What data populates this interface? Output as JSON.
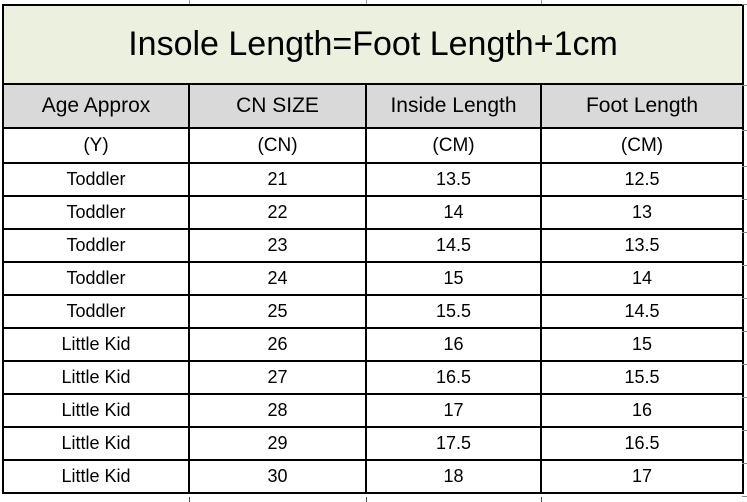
{
  "title_banner": "Insole Length=Foot Length+1cm",
  "chart_data": {
    "type": "table",
    "title": "Insole Length=Foot Length+1cm",
    "columns": [
      "Age Approx",
      "CN SIZE",
      "Inside Length",
      "Foot Length"
    ],
    "units": [
      "(Y)",
      "(CN)",
      "(CM)",
      "(CM)"
    ],
    "rows": [
      [
        "Toddler",
        "21",
        "13.5",
        "12.5"
      ],
      [
        "Toddler",
        "22",
        "14",
        "13"
      ],
      [
        "Toddler",
        "23",
        "14.5",
        "13.5"
      ],
      [
        "Toddler",
        "24",
        "15",
        "14"
      ],
      [
        "Toddler",
        "25",
        "15.5",
        "14.5"
      ],
      [
        "Little Kid",
        "26",
        "16",
        "15"
      ],
      [
        "Little Kid",
        "27",
        "16.5",
        "15.5"
      ],
      [
        "Little Kid",
        "28",
        "17",
        "16"
      ],
      [
        "Little Kid",
        "29",
        "17.5",
        "16.5"
      ],
      [
        "Little Kid",
        "30",
        "18",
        "17"
      ]
    ]
  },
  "colors": {
    "title_bg": "#ebf1de",
    "header_bg": "#d9d9d9",
    "grid": "#000000"
  }
}
